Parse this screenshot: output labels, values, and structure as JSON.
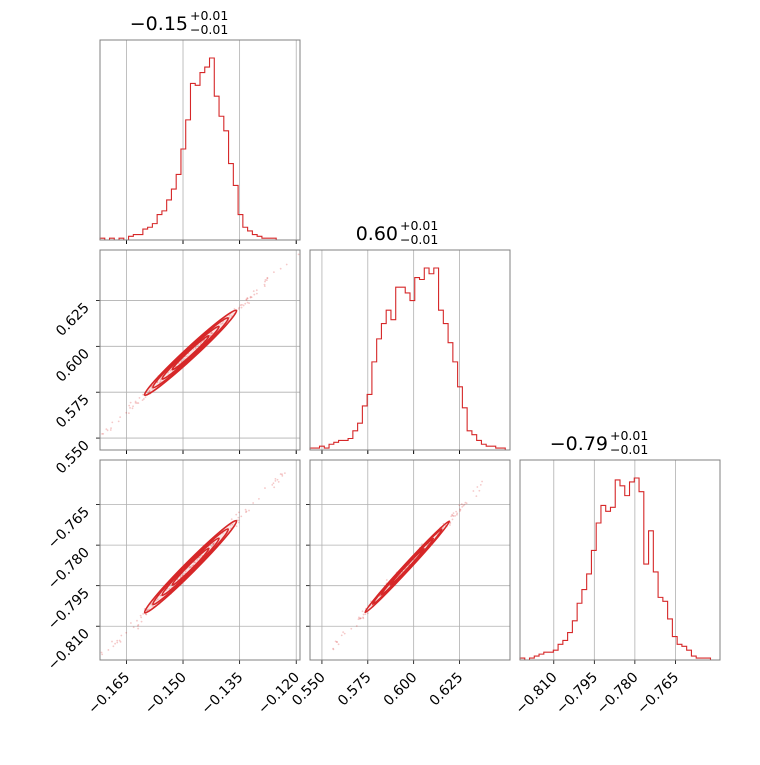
{
  "chart_data": {
    "type": "corner",
    "color": "#d62728",
    "grid": true,
    "parameters": [
      {
        "title_main": "−0.15",
        "title_sup": "+0.01",
        "title_sub": "−0.01",
        "range": [
          -0.172,
          -0.119
        ],
        "ticks": [
          -0.165,
          -0.15,
          -0.135,
          -0.12
        ],
        "tick_labels": [
          "−0.165",
          "−0.150",
          "−0.135",
          "−0.120"
        ]
      },
      {
        "title_main": "0.60",
        "title_sup": "+0.01",
        "title_sub": "−0.01",
        "range": [
          0.5435,
          0.6525
        ],
        "ticks": [
          0.55,
          0.575,
          0.6,
          0.625
        ],
        "tick_labels": [
          "0.550",
          "0.575",
          "0.600",
          "0.625"
        ]
      },
      {
        "title_main": "−0.79",
        "title_sup": "+0.01",
        "title_sub": "−0.01",
        "range": [
          -0.8225,
          -0.7485
        ],
        "ticks": [
          -0.81,
          -0.795,
          -0.78,
          -0.765
        ],
        "tick_labels": [
          "−0.810",
          "−0.795",
          "−0.780",
          "−0.765"
        ]
      }
    ],
    "histograms": [
      [
        0.01,
        0.0,
        0.01,
        0.0,
        0.01,
        0.0,
        0.02,
        0.03,
        0.03,
        0.06,
        0.07,
        0.09,
        0.14,
        0.16,
        0.22,
        0.28,
        0.36,
        0.5,
        0.66,
        0.86,
        0.85,
        0.92,
        0.95,
        1.0,
        0.79,
        0.68,
        0.6,
        0.42,
        0.3,
        0.14,
        0.07,
        0.05,
        0.03,
        0.02,
        0.01,
        0.01,
        0.01,
        0.0,
        0.0,
        0.0,
        0.0,
        0.0
      ],
      [
        0.01,
        0.01,
        0.02,
        0.01,
        0.03,
        0.04,
        0.05,
        0.05,
        0.06,
        0.1,
        0.14,
        0.23,
        0.29,
        0.46,
        0.58,
        0.66,
        0.73,
        0.68,
        0.85,
        0.85,
        0.82,
        0.78,
        0.9,
        0.89,
        0.95,
        0.92,
        0.95,
        0.73,
        0.66,
        0.56,
        0.46,
        0.33,
        0.22,
        0.1,
        0.08,
        0.05,
        0.03,
        0.02,
        0.02,
        0.01,
        0.01,
        0.0
      ],
      [
        0.01,
        0.0,
        0.01,
        0.02,
        0.03,
        0.04,
        0.04,
        0.05,
        0.08,
        0.1,
        0.14,
        0.2,
        0.29,
        0.36,
        0.44,
        0.56,
        0.7,
        0.79,
        0.76,
        0.78,
        0.92,
        0.89,
        0.84,
        0.91,
        0.93,
        0.86,
        0.49,
        0.66,
        0.45,
        0.32,
        0.3,
        0.21,
        0.12,
        0.08,
        0.07,
        0.05,
        0.02,
        0.01,
        0.01,
        0.01,
        0.0,
        0.0
      ]
    ],
    "pair_relations": [
      {
        "row": 1,
        "col": 0,
        "x_center": -0.148,
        "y_center": 0.5965,
        "slope": 1.9,
        "x_spread": 0.009
      },
      {
        "row": 2,
        "col": 0,
        "x_center": -0.148,
        "y_center": -0.788,
        "slope": 1.4,
        "x_spread": 0.009
      },
      {
        "row": 2,
        "col": 1,
        "x_center": 0.5965,
        "y_center": -0.788,
        "slope": 0.735,
        "x_spread": 0.017
      }
    ]
  }
}
